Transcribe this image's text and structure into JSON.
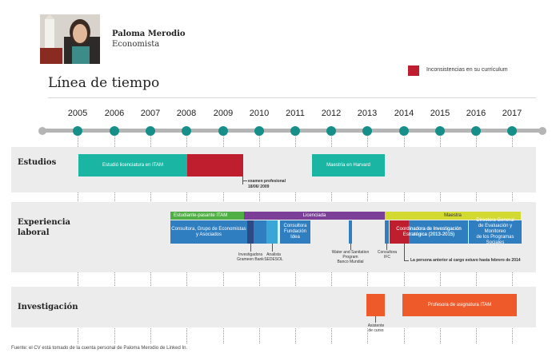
{
  "header": {
    "name": "Paloma Merodio",
    "role": "Economista",
    "title": "Línea de tiempo"
  },
  "legend": {
    "label": "Inconsistencias en su currículum",
    "color": "#bf1e2e"
  },
  "years": [
    "2005",
    "2006",
    "2007",
    "2008",
    "2009",
    "2010",
    "2011",
    "2012",
    "2013",
    "2014",
    "2015",
    "2016",
    "2017"
  ],
  "rows": {
    "estudios": "Estudios",
    "experiencia_1": "Experiencia",
    "experiencia_2": "laboral",
    "investigacion": "Investigación"
  },
  "estudios": {
    "licenciatura": "Estudió licenciatura en ITAM",
    "examen_1": "examen profesional",
    "examen_2": "18/06/ 2009",
    "maestria": "Maestría en Harvard"
  },
  "experiencia": {
    "estudiante": "Estudiante-pasante ITAM",
    "licenciada": "Licenciada",
    "maestra": "Maestra",
    "consultora_grupo_1": "Consultora, Grupo de Economistas",
    "consultora_grupo_2": "y Asociados",
    "fundacion_1": "Consultora",
    "fundacion_2": "Fundación",
    "fundacion_3": "Idea",
    "coordinadora_1": "Coordinadora de Investigación",
    "coordinadora_2": "Estratégica (2013-2015)",
    "directora_1": "Directora General",
    "directora_2": "de Evaluación y Monitoreo",
    "directora_3": "de los Programas Sociales",
    "grameen_1": "Investigadora",
    "grameen_2": "Grameen Bank",
    "sedesol_1": "Analista",
    "sedesol_2": "SEDESOL",
    "water_1": "Water and Sanitation",
    "water_2": "Program",
    "water_3": "Banco Mundial",
    "ifc_1": "Consultora",
    "ifc_2": "IFC",
    "anterior": "La persona anterior al cargo estuvo hasta febrero de 2014"
  },
  "investigacion": {
    "asistente_1": "Asistente",
    "asistente_2": "de curso",
    "profesora": "Profesora de asignatura ITAM"
  },
  "footer": "Fuente: el CV está tomado de la cuenta personal de Paloma Merodio de Linked In.",
  "colors": {
    "teal": "#1bb5a3",
    "red": "#bf1e2e",
    "green": "#4fae44",
    "purple": "#7b3f98",
    "yellow": "#d2d930",
    "blue": "#2f7ec0",
    "navy": "#2c4a85",
    "orange": "#ef5a2a",
    "dot": "#158f87"
  }
}
